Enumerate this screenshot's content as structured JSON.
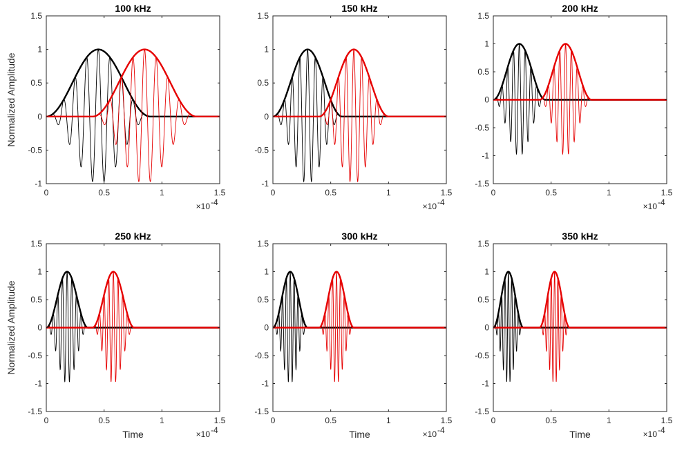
{
  "figure": {
    "ylabel": "Normalized Amplitude",
    "xlabel": "Time",
    "x_exponent_base": "×10",
    "x_exponent_power": "-4"
  },
  "colors": {
    "tone1": "#000000",
    "tone2": "#e60000",
    "axes": "#262626"
  },
  "chart_data": [
    {
      "type": "line",
      "title": "100 kHz",
      "frequency_khz": 100,
      "xlim": [
        0,
        1.5
      ],
      "ylim": [
        -1,
        1.5
      ],
      "xticks": [
        "0",
        "0.5",
        "1",
        "1.5"
      ],
      "yticks": [
        "-1",
        "-0.5",
        "0",
        "0.5",
        "1",
        "1.5"
      ],
      "ylabel": "Normalized Amplitude",
      "xlabel": "",
      "series": [
        {
          "role": "envelope",
          "color": "#000000",
          "start": 0.0,
          "end": 0.9,
          "peak": 1.0
        },
        {
          "role": "envelope",
          "color": "#e60000",
          "start": 0.4,
          "end": 1.3,
          "peak": 1.0
        }
      ]
    },
    {
      "type": "line",
      "title": "150 kHz",
      "frequency_khz": 150,
      "xlim": [
        0,
        1.5
      ],
      "ylim": [
        -1,
        1.5
      ],
      "xticks": [
        "0",
        "0.5",
        "1",
        "1.5"
      ],
      "yticks": [
        "-1",
        "-0.5",
        "0",
        "0.5",
        "1",
        "1.5"
      ],
      "ylabel": "",
      "xlabel": "",
      "series": [
        {
          "role": "envelope",
          "color": "#000000",
          "start": 0.0,
          "end": 0.6,
          "peak": 1.0
        },
        {
          "role": "envelope",
          "color": "#e60000",
          "start": 0.4,
          "end": 1.0,
          "peak": 1.0
        }
      ]
    },
    {
      "type": "line",
      "title": "200 kHz",
      "frequency_khz": 200,
      "xlim": [
        0,
        1.5
      ],
      "ylim": [
        -1.5,
        1.5
      ],
      "xticks": [
        "0",
        "0.5",
        "1",
        "1.5"
      ],
      "yticks": [
        "-1.5",
        "-1",
        "-0.5",
        "0",
        "0.5",
        "1",
        "1.5"
      ],
      "ylabel": "",
      "xlabel": "",
      "series": [
        {
          "role": "envelope",
          "color": "#000000",
          "start": 0.0,
          "end": 0.45,
          "peak": 1.0
        },
        {
          "role": "envelope",
          "color": "#e60000",
          "start": 0.4,
          "end": 0.85,
          "peak": 1.0
        }
      ]
    },
    {
      "type": "line",
      "title": "250 kHz",
      "frequency_khz": 250,
      "xlim": [
        0,
        1.5
      ],
      "ylim": [
        -1.5,
        1.5
      ],
      "xticks": [
        "0",
        "0.5",
        "1",
        "1.5"
      ],
      "yticks": [
        "-1.5",
        "-1",
        "-0.5",
        "0",
        "0.5",
        "1",
        "1.5"
      ],
      "ylabel": "Normalized Amplitude",
      "xlabel": "Time",
      "series": [
        {
          "role": "envelope",
          "color": "#000000",
          "start": 0.0,
          "end": 0.36,
          "peak": 1.0
        },
        {
          "role": "envelope",
          "color": "#e60000",
          "start": 0.4,
          "end": 0.76,
          "peak": 1.0
        }
      ]
    },
    {
      "type": "line",
      "title": "300 kHz",
      "frequency_khz": 300,
      "xlim": [
        0,
        1.5
      ],
      "ylim": [
        -1.5,
        1.5
      ],
      "xticks": [
        "0",
        "0.5",
        "1",
        "1.5"
      ],
      "yticks": [
        "-1.5",
        "-1",
        "-0.5",
        "0",
        "0.5",
        "1",
        "1.5"
      ],
      "ylabel": "",
      "xlabel": "Time",
      "series": [
        {
          "role": "envelope",
          "color": "#000000",
          "start": 0.0,
          "end": 0.3,
          "peak": 1.0
        },
        {
          "role": "envelope",
          "color": "#e60000",
          "start": 0.4,
          "end": 0.7,
          "peak": 1.0
        }
      ]
    },
    {
      "type": "line",
      "title": "350 kHz",
      "frequency_khz": 350,
      "xlim": [
        0,
        1.5
      ],
      "ylim": [
        -1.5,
        1.5
      ],
      "xticks": [
        "0",
        "0.5",
        "1",
        "1.5"
      ],
      "yticks": [
        "-1.5",
        "-1",
        "-0.5",
        "0",
        "0.5",
        "1",
        "1.5"
      ],
      "ylabel": "",
      "xlabel": "Time",
      "series": [
        {
          "role": "envelope",
          "color": "#000000",
          "start": 0.0,
          "end": 0.26,
          "peak": 1.0
        },
        {
          "role": "envelope",
          "color": "#e60000",
          "start": 0.4,
          "end": 0.66,
          "peak": 1.0
        }
      ]
    }
  ]
}
